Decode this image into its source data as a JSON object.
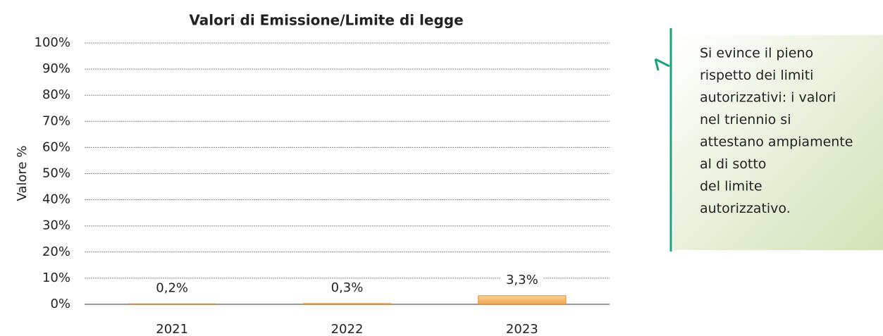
{
  "chart_data": {
    "type": "bar",
    "title": "Valori di Emissione/Limite di legge",
    "y_label": "Valore %",
    "categories": [
      "2021",
      "2022",
      "2023"
    ],
    "values": [
      0.2,
      0.3,
      3.3
    ],
    "value_labels": [
      "0,2%",
      "0,3%",
      "3,3%"
    ],
    "color": "#f5b461",
    "ylim": [
      0,
      100
    ],
    "yticks": [
      {
        "value": 0,
        "label": "0%"
      },
      {
        "value": 10,
        "label": "10%"
      },
      {
        "value": 20,
        "label": "20%"
      },
      {
        "value": 30,
        "label": "30%"
      },
      {
        "value": 40,
        "label": "40%"
      },
      {
        "value": 50,
        "label": "50%"
      },
      {
        "value": 60,
        "label": "60%"
      },
      {
        "value": 70,
        "label": "70%"
      },
      {
        "value": 80,
        "label": "80%"
      },
      {
        "value": 90,
        "label": "90%"
      },
      {
        "value": 100,
        "label": "100%"
      }
    ],
    "grid": true,
    "annotation": [
      "Si evince il pieno",
      "rispetto dei limiti",
      "autorizzativi: i valori",
      "nel triennio si",
      "attestano ampiamente",
      "al di sotto",
      "del limite",
      "autorizzativo."
    ]
  }
}
